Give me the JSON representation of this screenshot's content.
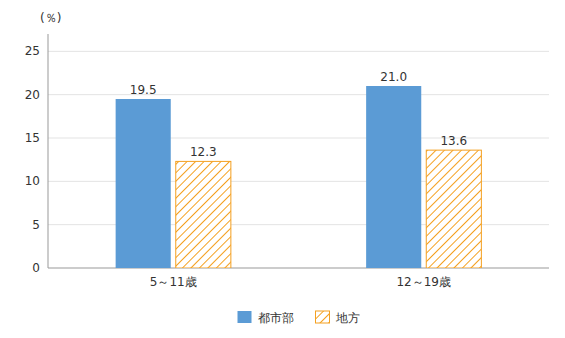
{
  "chart_data": {
    "type": "bar",
    "y_label": "(％)",
    "categories": [
      "5～11歳",
      "12～19歳"
    ],
    "series": [
      {
        "name": "都市部",
        "color": "#5B9BD5",
        "values": [
          19.5,
          21.0
        ],
        "value_labels": [
          "19.5",
          "21.0"
        ]
      },
      {
        "name": "地方",
        "color": "#F4A020",
        "values": [
          12.3,
          13.6
        ],
        "value_labels": [
          "12.3",
          "13.6"
        ]
      }
    ],
    "ylim": [
      0,
      27
    ],
    "yticks": [
      0,
      5,
      10,
      15,
      20,
      25
    ],
    "grid": true,
    "legend": "bottom",
    "data_labels": true
  }
}
